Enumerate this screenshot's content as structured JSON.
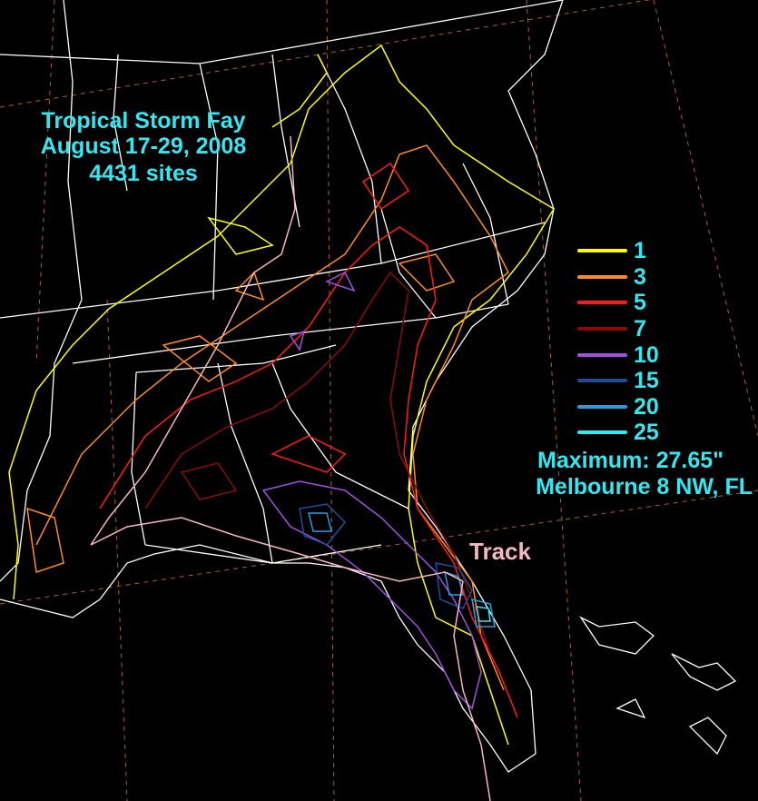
{
  "title": {
    "line1": "Tropical Storm Fay",
    "line2": "August 17-29, 2008",
    "line3": "4431 sites"
  },
  "legend": {
    "items": [
      {
        "label": "1",
        "color": "#ffff00"
      },
      {
        "label": "3",
        "color": "#ff8c1a"
      },
      {
        "label": "5",
        "color": "#ff1a1a"
      },
      {
        "label": "7",
        "color": "#8b0a0a"
      },
      {
        "label": "10",
        "color": "#a050e0"
      },
      {
        "label": "15",
        "color": "#1f4f9a"
      },
      {
        "label": "20",
        "color": "#2a9ae0"
      },
      {
        "label": "25",
        "color": "#33e6f0"
      }
    ]
  },
  "maximum": {
    "value": "Maximum: 27.65\"",
    "station": "Melbourne 8 NW, FL"
  },
  "track": {
    "label": "Track",
    "color": "#f6b6c0"
  },
  "colors": {
    "background": "#000000",
    "text": "#33e6f0",
    "borders": "#ffffff",
    "graticule": "#d07a40"
  }
}
